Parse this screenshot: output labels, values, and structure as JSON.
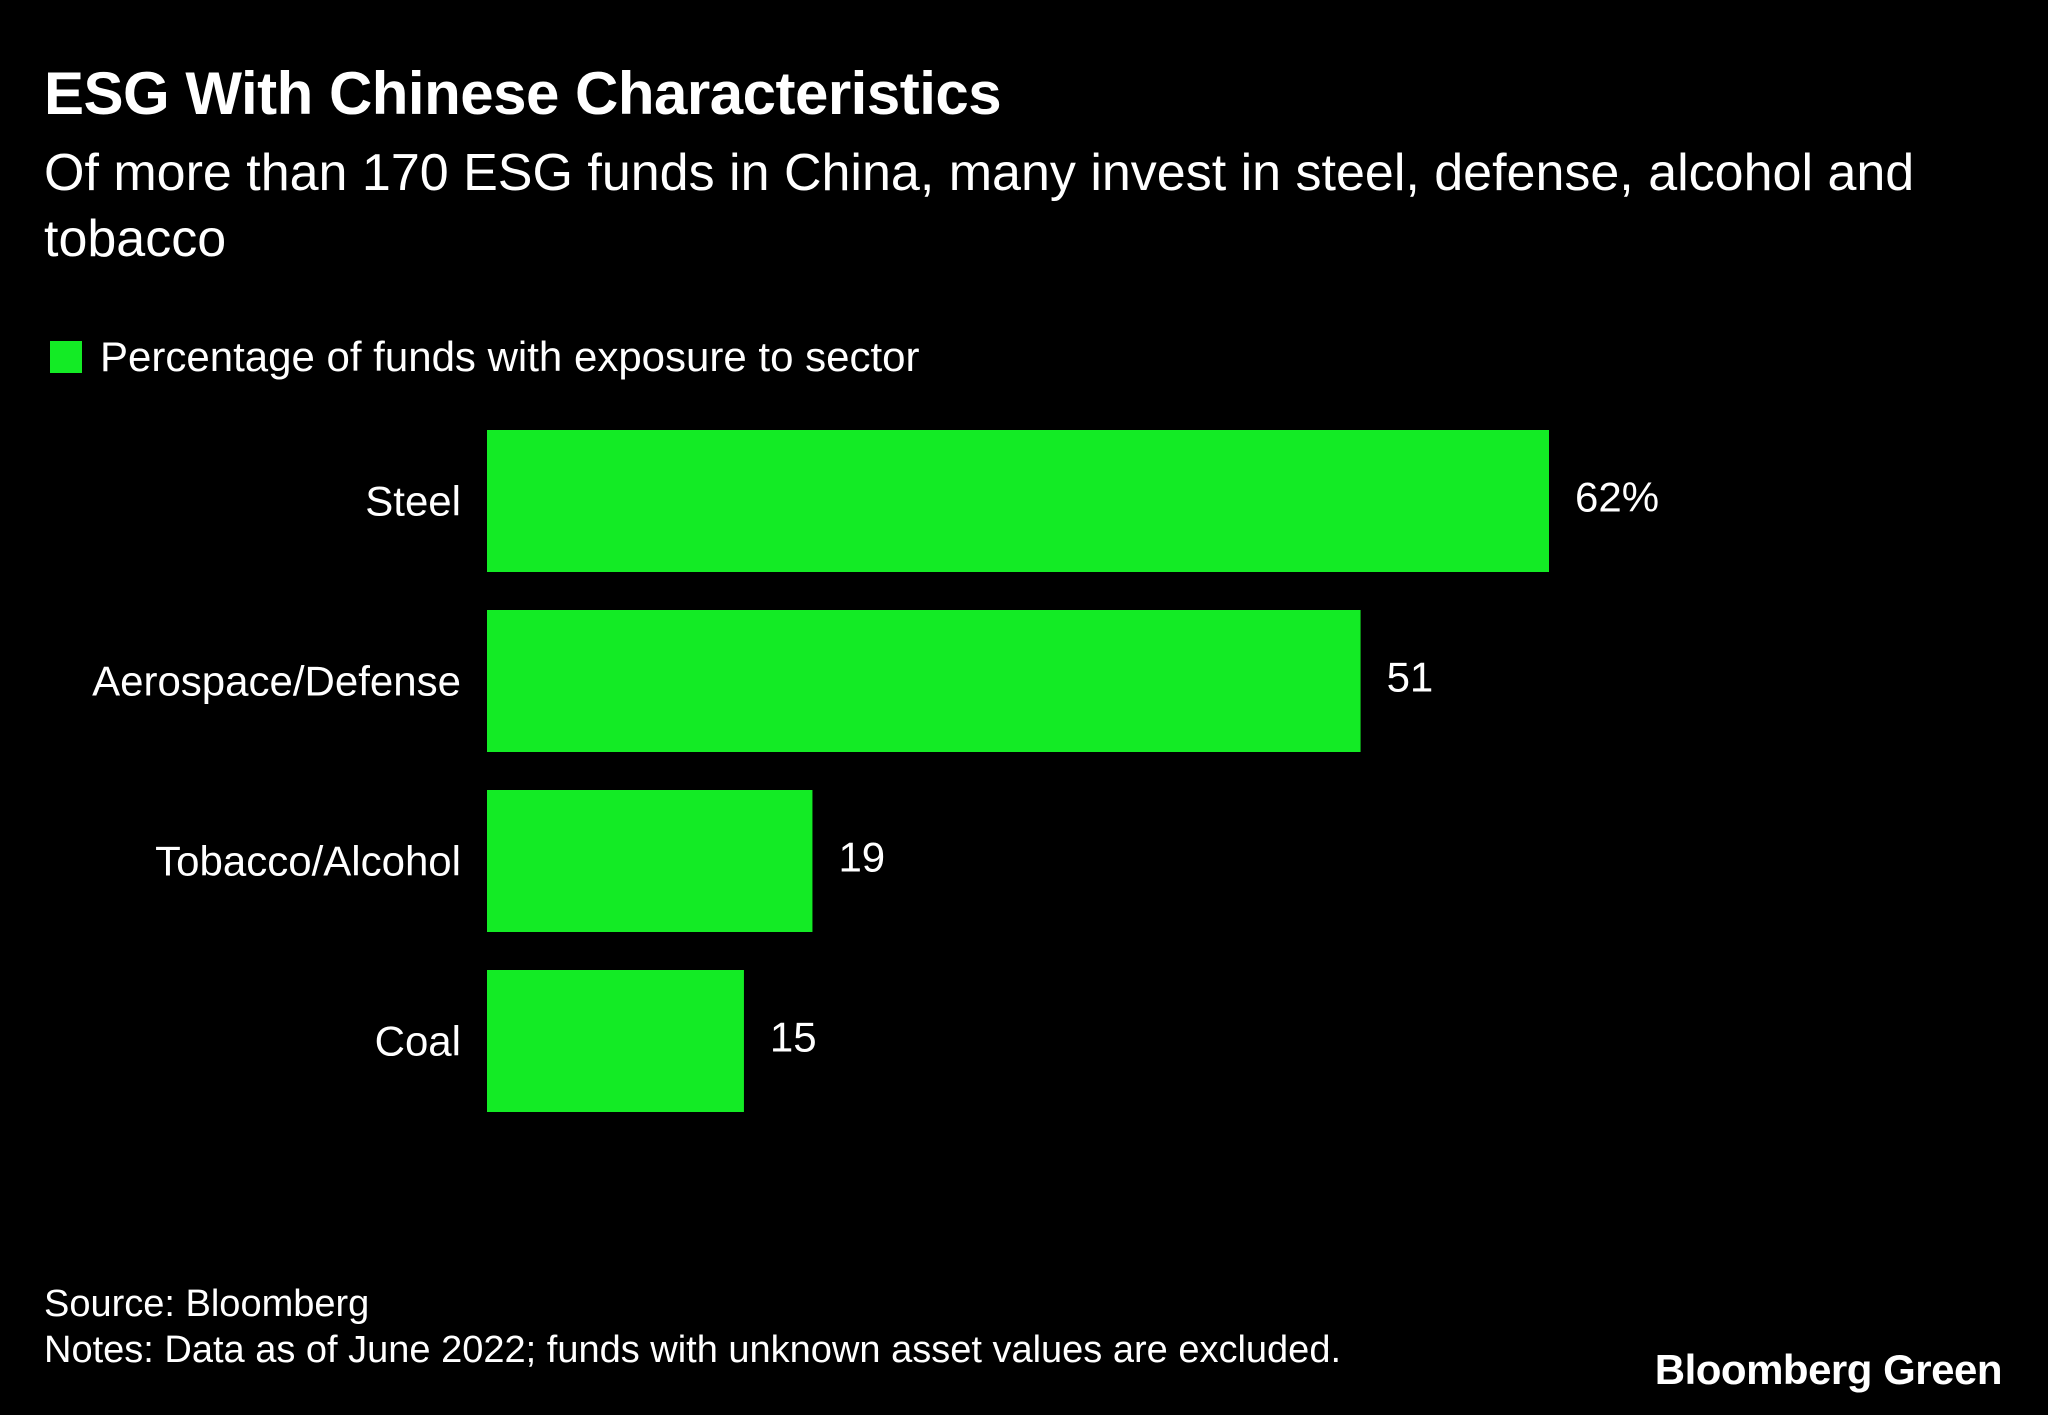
{
  "chart_data": {
    "type": "bar",
    "orientation": "horizontal",
    "title": "ESG With Chinese Characteristics",
    "subtitle": "Of more than 170 ESG funds in China, many invest in steel, defense, alcohol and tobacco",
    "categories": [
      "Steel",
      "Aerospace/Defense",
      "Tobacco/Alcohol",
      "Coal"
    ],
    "series": [
      {
        "name": "Percentage of funds with exposure to sector",
        "values": [
          62,
          51,
          19,
          15
        ],
        "labels": [
          "62%",
          "51",
          "19",
          "15"
        ],
        "color": "#13eb25"
      }
    ],
    "xlim": [
      0,
      62
    ],
    "grid": false,
    "legend": "top-left"
  },
  "footer": {
    "source": "Source: Bloomberg",
    "notes": "Notes: Data as of June 2022; funds with unknown asset values are excluded.",
    "brand": "Bloomberg Green"
  },
  "colors": {
    "background": "#000000",
    "bar": "#13eb25",
    "text": "#ffffff"
  }
}
